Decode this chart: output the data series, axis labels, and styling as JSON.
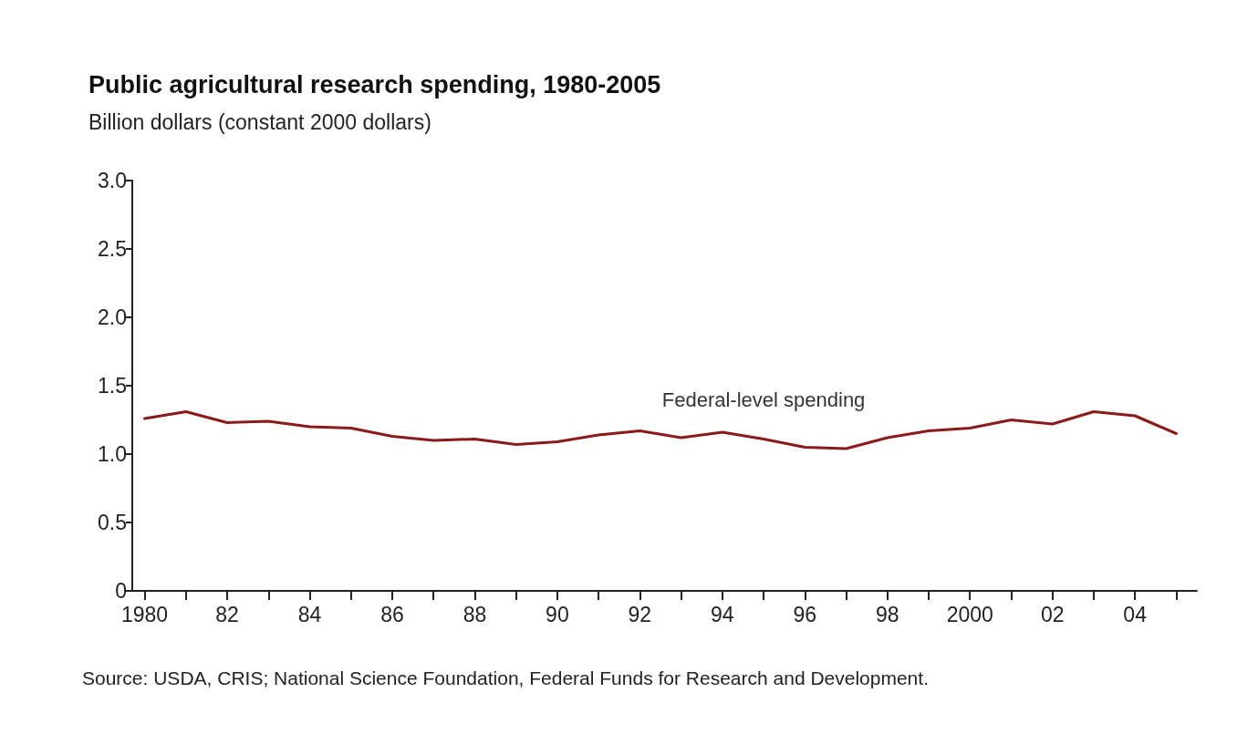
{
  "chart_data": {
    "type": "line",
    "title": "Public agricultural research spending, 1980-2005",
    "subtitle": "Billion dollars (constant 2000 dollars)",
    "x": [
      1980,
      1981,
      1982,
      1983,
      1984,
      1985,
      1986,
      1987,
      1988,
      1989,
      1990,
      1991,
      1992,
      1993,
      1994,
      1995,
      1996,
      1997,
      1998,
      1999,
      2000,
      2001,
      2002,
      2003,
      2004,
      2005
    ],
    "series": [
      {
        "name": "Federal-level spending",
        "color": "#8b1a1a",
        "values": [
          1.26,
          1.31,
          1.23,
          1.24,
          1.2,
          1.19,
          1.13,
          1.1,
          1.11,
          1.07,
          1.09,
          1.14,
          1.17,
          1.12,
          1.16,
          1.11,
          1.05,
          1.04,
          1.12,
          1.17,
          1.19,
          1.25,
          1.22,
          1.31,
          1.28,
          1.15
        ]
      }
    ],
    "xlim": [
      1979.7,
      2005.5
    ],
    "xticks": [
      1980,
      {
        "value": 1981,
        "label": null
      },
      {
        "value": 1982,
        "label": "82"
      },
      {
        "value": 1983,
        "label": null
      },
      {
        "value": 1984,
        "label": "84"
      },
      {
        "value": 1985,
        "label": null
      },
      {
        "value": 1986,
        "label": "86"
      },
      {
        "value": 1987,
        "label": null
      },
      {
        "value": 1988,
        "label": "88"
      },
      {
        "value": 1989,
        "label": null
      },
      {
        "value": 1990,
        "label": "90"
      },
      {
        "value": 1991,
        "label": null
      },
      {
        "value": 1992,
        "label": "92"
      },
      {
        "value": 1993,
        "label": null
      },
      {
        "value": 1994,
        "label": "94"
      },
      {
        "value": 1995,
        "label": null
      },
      {
        "value": 1996,
        "label": "96"
      },
      {
        "value": 1997,
        "label": null
      },
      {
        "value": 1998,
        "label": "98"
      },
      {
        "value": 1999,
        "label": null
      },
      2000,
      {
        "value": 2001,
        "label": null
      },
      {
        "value": 2002,
        "label": "02"
      },
      {
        "value": 2003,
        "label": null
      },
      {
        "value": 2004,
        "label": "04"
      },
      {
        "value": 2005,
        "label": null
      }
    ],
    "ylim": [
      0,
      3
    ],
    "yticks": [
      0,
      {
        "value": 0.5,
        "label": "0.5"
      },
      {
        "value": 1,
        "label": "1.0"
      },
      {
        "value": 1.5,
        "label": "1.5"
      },
      {
        "value": 2,
        "label": "2.0"
      },
      {
        "value": 2.5,
        "label": "2.5"
      },
      {
        "value": 3,
        "label": "3.0"
      }
    ],
    "grid": false,
    "legend": false,
    "marker": "none",
    "line_style": "solid",
    "annotations": [
      "Source: USDA, CRIS; National Science Foundation, Federal Funds for Research and Development."
    ]
  }
}
